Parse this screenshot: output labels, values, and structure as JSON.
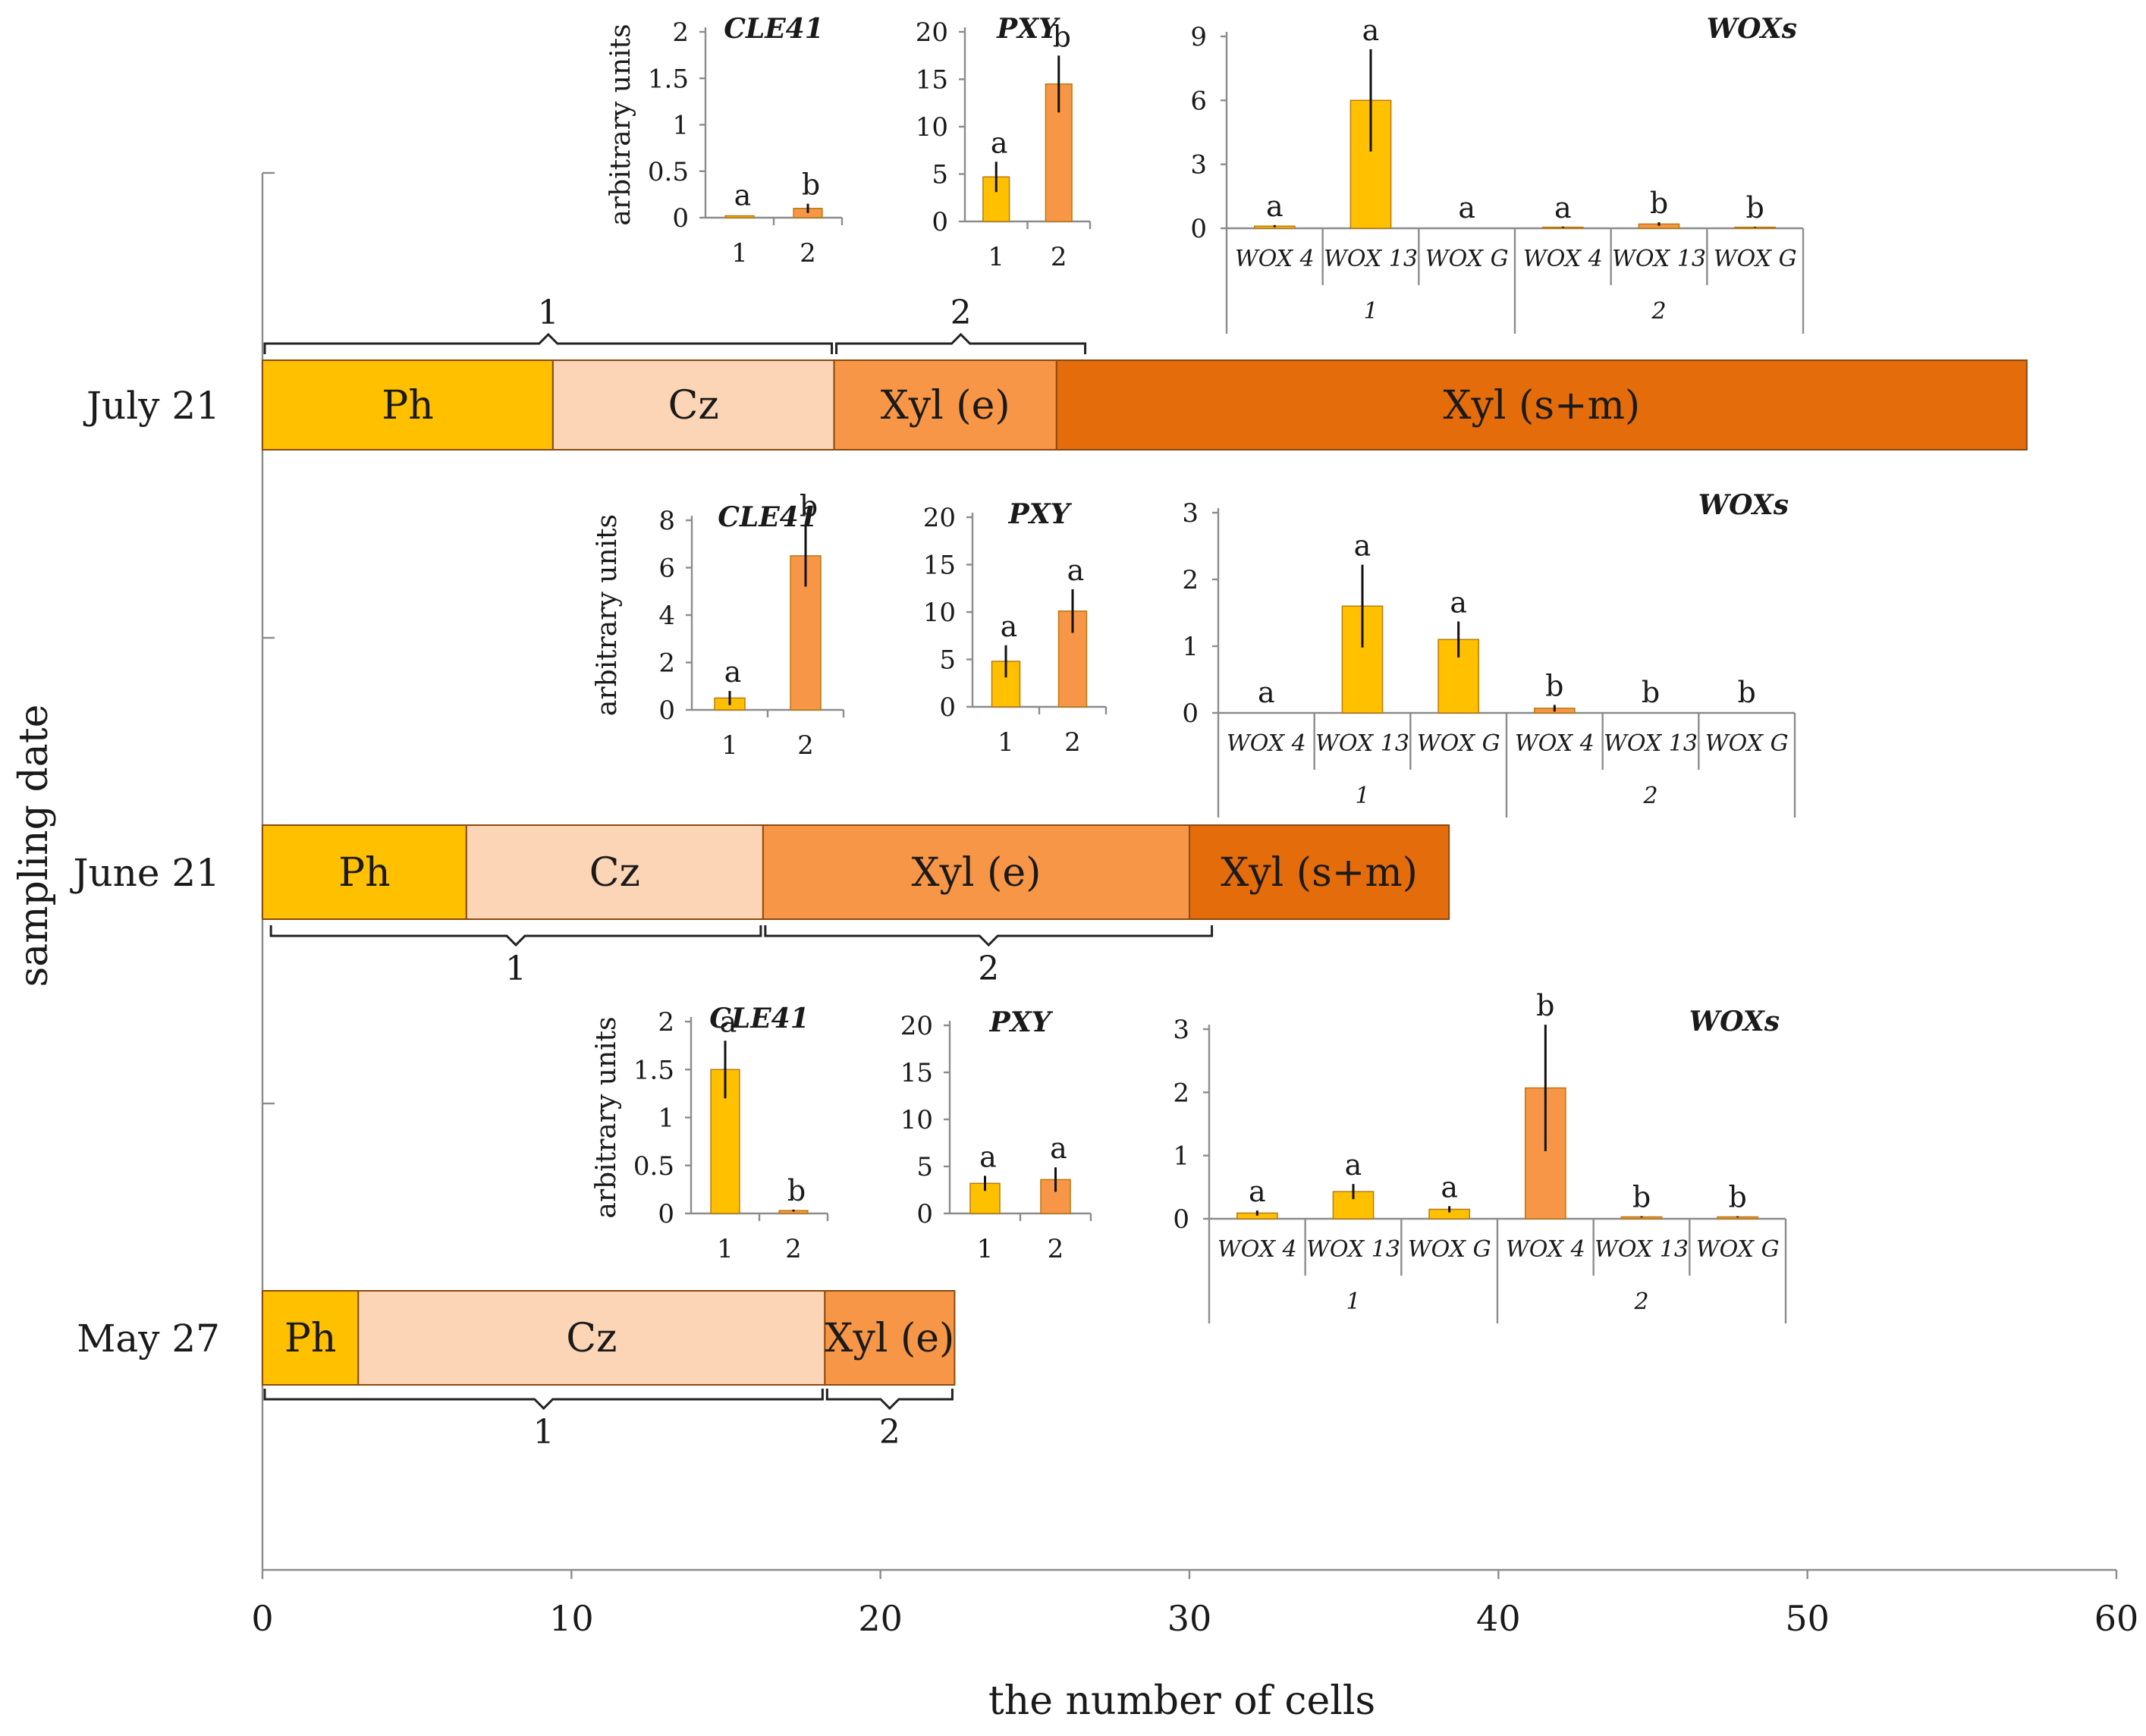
{
  "chart_data": {
    "type": "bar",
    "orientation": "horizontal-stacked",
    "xlabel": "the number of cells",
    "ylabel": "sampling date",
    "xlim": [
      0,
      60
    ],
    "xticks": [
      "0",
      "10",
      "20",
      "30",
      "40",
      "50",
      "60"
    ],
    "colors": {
      "Ph": "#FFC000",
      "Cz": "#FBD5B5",
      "Xyl (e)": "#F79646",
      "Xyl (s+m)": "#E46C0A",
      "inset_zone1": "#FFC000",
      "inset_zone2": "#F79646"
    },
    "rows": [
      {
        "date": "July 21",
        "segments": [
          {
            "label": "Ph",
            "value": 9.4
          },
          {
            "label": "Cz",
            "value": 9.1
          },
          {
            "label": "Xyl (e)",
            "value": 7.2
          },
          {
            "label": "Xyl (s+m)",
            "value": 31.4
          }
        ],
        "zones": [
          {
            "label": "1",
            "from": 0,
            "to": 18.5
          },
          {
            "label": "2",
            "from": 18.5,
            "to": 26.7
          }
        ],
        "insets": {
          "ylabel": "arbitrary units",
          "cle41": {
            "title": "CLE41",
            "yticks": [
              "0",
              "0.5",
              "1",
              "1.5",
              "2"
            ],
            "ymax": 2,
            "categories": [
              "1",
              "2"
            ],
            "values": [
              0.02,
              0.1
            ],
            "errors": [
              0.0,
              0.05
            ],
            "letters": [
              "a",
              "b"
            ]
          },
          "pxy": {
            "title": "PXY",
            "yticks": [
              "0",
              "5",
              "10",
              "15",
              "20"
            ],
            "ymax": 20,
            "categories": [
              "1",
              "2"
            ],
            "values": [
              4.7,
              14.5
            ],
            "errors": [
              1.6,
              3.0
            ],
            "letters": [
              "a",
              "b"
            ]
          },
          "wox": {
            "title": "WOXs",
            "yticks": [
              "0",
              "3",
              "6",
              "9"
            ],
            "ymax": 9,
            "categories": [
              "WOX 4",
              "WOX 13",
              "WOX G",
              "WOX 4",
              "WOX 13",
              "WOX G"
            ],
            "groups": [
              "1",
              "2"
            ],
            "values": [
              0.1,
              6.0,
              0.0,
              0.05,
              0.2,
              0.05
            ],
            "errors": [
              0.05,
              2.4,
              0.0,
              0.03,
              0.08,
              0.02
            ],
            "letters": [
              "a",
              "a",
              "a",
              "a",
              "b",
              "b"
            ]
          }
        }
      },
      {
        "date": "June 21",
        "segments": [
          {
            "label": "Ph",
            "value": 6.6
          },
          {
            "label": "Cz",
            "value": 9.6
          },
          {
            "label": "Xyl (e)",
            "value": 13.8
          },
          {
            "label": "Xyl (s+m)",
            "value": 8.4
          }
        ],
        "zones": [
          {
            "label": "1",
            "from": 0.2,
            "to": 16.2
          },
          {
            "label": "2",
            "from": 16.2,
            "to": 30.8
          }
        ],
        "insets": {
          "ylabel": "arbitrary units",
          "cle41": {
            "title": "CLE41",
            "yticks": [
              "0",
              "2",
              "4",
              "6",
              "8"
            ],
            "ymax": 8,
            "categories": [
              "1",
              "2"
            ],
            "values": [
              0.5,
              6.5
            ],
            "errors": [
              0.3,
              1.3
            ],
            "letters": [
              "a",
              "b"
            ]
          },
          "pxy": {
            "title": "PXY",
            "yticks": [
              "0",
              "5",
              "10",
              "15",
              "20"
            ],
            "ymax": 20,
            "categories": [
              "1",
              "2"
            ],
            "values": [
              4.8,
              10.1
            ],
            "errors": [
              1.7,
              2.3
            ],
            "letters": [
              "a",
              "a"
            ]
          },
          "wox": {
            "title": "WOXs",
            "yticks": [
              "0",
              "1",
              "2",
              "3"
            ],
            "ymax": 3,
            "categories": [
              "WOX 4",
              "WOX 13",
              "WOX G",
              "WOX 4",
              "WOX 13",
              "WOX G"
            ],
            "groups": [
              "1",
              "2"
            ],
            "values": [
              0.0,
              1.6,
              1.1,
              0.07,
              0.0,
              0.0
            ],
            "errors": [
              0.0,
              0.62,
              0.27,
              0.05,
              0.0,
              0.0
            ],
            "letters": [
              "a",
              "a",
              "a",
              "b",
              "b",
              "b"
            ]
          }
        }
      },
      {
        "date": "May 27",
        "segments": [
          {
            "label": "Ph",
            "value": 3.1
          },
          {
            "label": "Cz",
            "value": 15.1
          },
          {
            "label": "Xyl (e)",
            "value": 4.2
          }
        ],
        "zones": [
          {
            "label": "1",
            "from": 0,
            "to": 18.2
          },
          {
            "label": "2",
            "from": 18.2,
            "to": 22.4
          }
        ],
        "insets": {
          "ylabel": "arbitrary units",
          "cle41": {
            "title": "CLE41",
            "yticks": [
              "0",
              "0.5",
              "1",
              "1.5",
              "2"
            ],
            "ymax": 2,
            "categories": [
              "1",
              "2"
            ],
            "values": [
              1.5,
              0.03
            ],
            "errors": [
              0.3,
              0.01
            ],
            "letters": [
              "a",
              "b"
            ]
          },
          "pxy": {
            "title": "PXY",
            "yticks": [
              "0",
              "5",
              "10",
              "15",
              "20"
            ],
            "ymax": 20,
            "categories": [
              "1",
              "2"
            ],
            "values": [
              3.2,
              3.6
            ],
            "errors": [
              0.8,
              1.3
            ],
            "letters": [
              "a",
              "a"
            ]
          },
          "wox": {
            "title": "WOXs",
            "yticks": [
              "0",
              "1",
              "2",
              "3"
            ],
            "ymax": 3,
            "categories": [
              "WOX 4",
              "WOX 13",
              "WOX G",
              "WOX 4",
              "WOX 13",
              "WOX G"
            ],
            "groups": [
              "1",
              "2"
            ],
            "values": [
              0.09,
              0.43,
              0.15,
              2.07,
              0.03,
              0.03
            ],
            "errors": [
              0.04,
              0.12,
              0.05,
              1.0,
              0.01,
              0.01
            ],
            "letters": [
              "a",
              "a",
              "a",
              "b",
              "b",
              "b"
            ]
          }
        }
      }
    ]
  }
}
